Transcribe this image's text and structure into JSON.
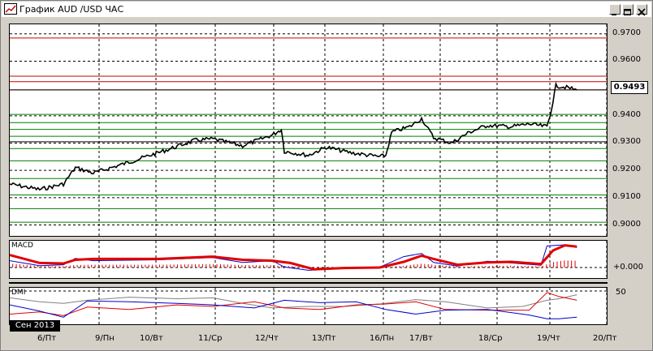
{
  "window": {
    "title": "График AUD /USD ЧАС",
    "buttons": [
      "minimize",
      "maximize",
      "close"
    ]
  },
  "current_price": "0.9493",
  "price_axis": [
    "0.9700",
    "0.9600",
    "0.9400",
    "0.9300",
    "0.9200",
    "0.9100",
    "0.9000"
  ],
  "indicators": {
    "macd": {
      "label": "MACD",
      "axis_label": "+0.000"
    },
    "dmi": {
      "label": "DMI",
      "axis_label": "50"
    }
  },
  "date_badge": "Сен 2013",
  "x_labels": [
    "6/Пт",
    "9/Пн",
    "10/Вт",
    "11/Ср",
    "12/Чт",
    "13/Пт",
    "16/Пн",
    "17/Вт",
    "18/Ср",
    "19/Чт",
    "20/Пт"
  ],
  "colors": {
    "price_line": "#000000",
    "resistance": "#cc0000",
    "support": "#008000",
    "macd_signal": "#e00000",
    "macd_line": "#0000cc",
    "dmi_plus": "#0000cc",
    "dmi_minus": "#e00000",
    "adx": "#808080"
  },
  "chart_data": {
    "type": "line",
    "title": "График AUD /USD ЧАС",
    "y_range": [
      0.896,
      0.9735
    ],
    "ticks_y": [
      0.97,
      0.96,
      0.94,
      0.93,
      0.92,
      0.91,
      0.9
    ],
    "last_price": 0.9493,
    "red_levels": [
      0.9685,
      0.9545,
      0.9525,
      0.9495
    ],
    "green_levels": [
      0.9405,
      0.9375,
      0.935,
      0.9325,
      0.928,
      0.9235,
      0.917,
      0.911,
      0.906,
      0.901
    ],
    "black_levels": [
      0.9495,
      0.9305
    ],
    "price_points": [
      [
        0.0,
        0.915
      ],
      [
        0.05,
        0.913
      ],
      [
        0.09,
        0.915
      ],
      [
        0.11,
        0.921
      ],
      [
        0.14,
        0.919
      ],
      [
        0.2,
        0.923
      ],
      [
        0.27,
        0.928
      ],
      [
        0.31,
        0.931
      ],
      [
        0.34,
        0.9315
      ],
      [
        0.39,
        0.929
      ],
      [
        0.44,
        0.933
      ],
      [
        0.455,
        0.935
      ],
      [
        0.46,
        0.927
      ],
      [
        0.5,
        0.9255
      ],
      [
        0.53,
        0.9285
      ],
      [
        0.57,
        0.9265
      ],
      [
        0.62,
        0.925
      ],
      [
        0.63,
        0.9255
      ],
      [
        0.64,
        0.934
      ],
      [
        0.67,
        0.936
      ],
      [
        0.69,
        0.939
      ],
      [
        0.71,
        0.932
      ],
      [
        0.74,
        0.93
      ],
      [
        0.77,
        0.934
      ],
      [
        0.8,
        0.9365
      ],
      [
        0.84,
        0.936
      ],
      [
        0.87,
        0.937
      ],
      [
        0.9,
        0.936
      ],
      [
        0.905,
        0.94
      ],
      [
        0.915,
        0.951
      ],
      [
        0.93,
        0.9505
      ],
      [
        0.95,
        0.9495
      ]
    ],
    "macd_signal_points": [
      [
        0.0,
        0.55
      ],
      [
        0.05,
        0.2
      ],
      [
        0.09,
        0.18
      ],
      [
        0.11,
        0.34
      ],
      [
        0.14,
        0.38
      ],
      [
        0.25,
        0.38
      ],
      [
        0.34,
        0.48
      ],
      [
        0.39,
        0.34
      ],
      [
        0.44,
        0.3
      ],
      [
        0.47,
        0.2
      ],
      [
        0.51,
        -0.08
      ],
      [
        0.56,
        -0.02
      ],
      [
        0.62,
        0.0
      ],
      [
        0.66,
        0.25
      ],
      [
        0.69,
        0.52
      ],
      [
        0.71,
        0.38
      ],
      [
        0.75,
        0.12
      ],
      [
        0.8,
        0.22
      ],
      [
        0.84,
        0.25
      ],
      [
        0.89,
        0.15
      ],
      [
        0.91,
        0.75
      ],
      [
        0.93,
        0.98
      ],
      [
        0.95,
        0.92
      ]
    ],
    "macd_line_points": [
      [
        0.0,
        0.3
      ],
      [
        0.05,
        0.08
      ],
      [
        0.09,
        0.12
      ],
      [
        0.11,
        0.4
      ],
      [
        0.14,
        0.3
      ],
      [
        0.25,
        0.34
      ],
      [
        0.34,
        0.44
      ],
      [
        0.39,
        0.22
      ],
      [
        0.44,
        0.3
      ],
      [
        0.46,
        0.02
      ],
      [
        0.5,
        -0.12
      ],
      [
        0.56,
        -0.04
      ],
      [
        0.62,
        0.02
      ],
      [
        0.66,
        0.48
      ],
      [
        0.69,
        0.62
      ],
      [
        0.71,
        0.22
      ],
      [
        0.75,
        0.06
      ],
      [
        0.8,
        0.28
      ],
      [
        0.84,
        0.2
      ],
      [
        0.89,
        0.1
      ],
      [
        0.9,
        0.95
      ],
      [
        0.93,
        1.0
      ],
      [
        0.95,
        0.88
      ]
    ],
    "dmi_plus_points": [
      [
        0.0,
        0.45
      ],
      [
        0.05,
        0.65
      ],
      [
        0.09,
        0.85
      ],
      [
        0.13,
        0.32
      ],
      [
        0.2,
        0.35
      ],
      [
        0.28,
        0.4
      ],
      [
        0.34,
        0.45
      ],
      [
        0.41,
        0.55
      ],
      [
        0.46,
        0.3
      ],
      [
        0.52,
        0.38
      ],
      [
        0.58,
        0.35
      ],
      [
        0.63,
        0.6
      ],
      [
        0.68,
        0.75
      ],
      [
        0.73,
        0.62
      ],
      [
        0.8,
        0.6
      ],
      [
        0.87,
        0.78
      ],
      [
        0.9,
        0.9
      ],
      [
        0.92,
        0.9
      ],
      [
        0.95,
        0.85
      ]
    ],
    "dmi_minus_points": [
      [
        0.0,
        0.75
      ],
      [
        0.05,
        0.68
      ],
      [
        0.09,
        0.8
      ],
      [
        0.13,
        0.52
      ],
      [
        0.2,
        0.6
      ],
      [
        0.28,
        0.45
      ],
      [
        0.34,
        0.5
      ],
      [
        0.41,
        0.35
      ],
      [
        0.46,
        0.55
      ],
      [
        0.52,
        0.6
      ],
      [
        0.58,
        0.45
      ],
      [
        0.63,
        0.42
      ],
      [
        0.68,
        0.35
      ],
      [
        0.73,
        0.6
      ],
      [
        0.8,
        0.62
      ],
      [
        0.87,
        0.62
      ],
      [
        0.9,
        0.05
      ],
      [
        0.92,
        0.18
      ],
      [
        0.95,
        0.3
      ]
    ],
    "adx_points": [
      [
        0.0,
        0.22
      ],
      [
        0.05,
        0.35
      ],
      [
        0.09,
        0.4
      ],
      [
        0.13,
        0.3
      ],
      [
        0.2,
        0.2
      ],
      [
        0.28,
        0.25
      ],
      [
        0.34,
        0.22
      ],
      [
        0.39,
        0.4
      ],
      [
        0.44,
        0.55
      ],
      [
        0.5,
        0.5
      ],
      [
        0.56,
        0.5
      ],
      [
        0.62,
        0.42
      ],
      [
        0.68,
        0.28
      ],
      [
        0.73,
        0.35
      ],
      [
        0.8,
        0.55
      ],
      [
        0.86,
        0.5
      ],
      [
        0.9,
        0.3
      ],
      [
        0.92,
        0.25
      ],
      [
        0.95,
        0.12
      ]
    ]
  }
}
